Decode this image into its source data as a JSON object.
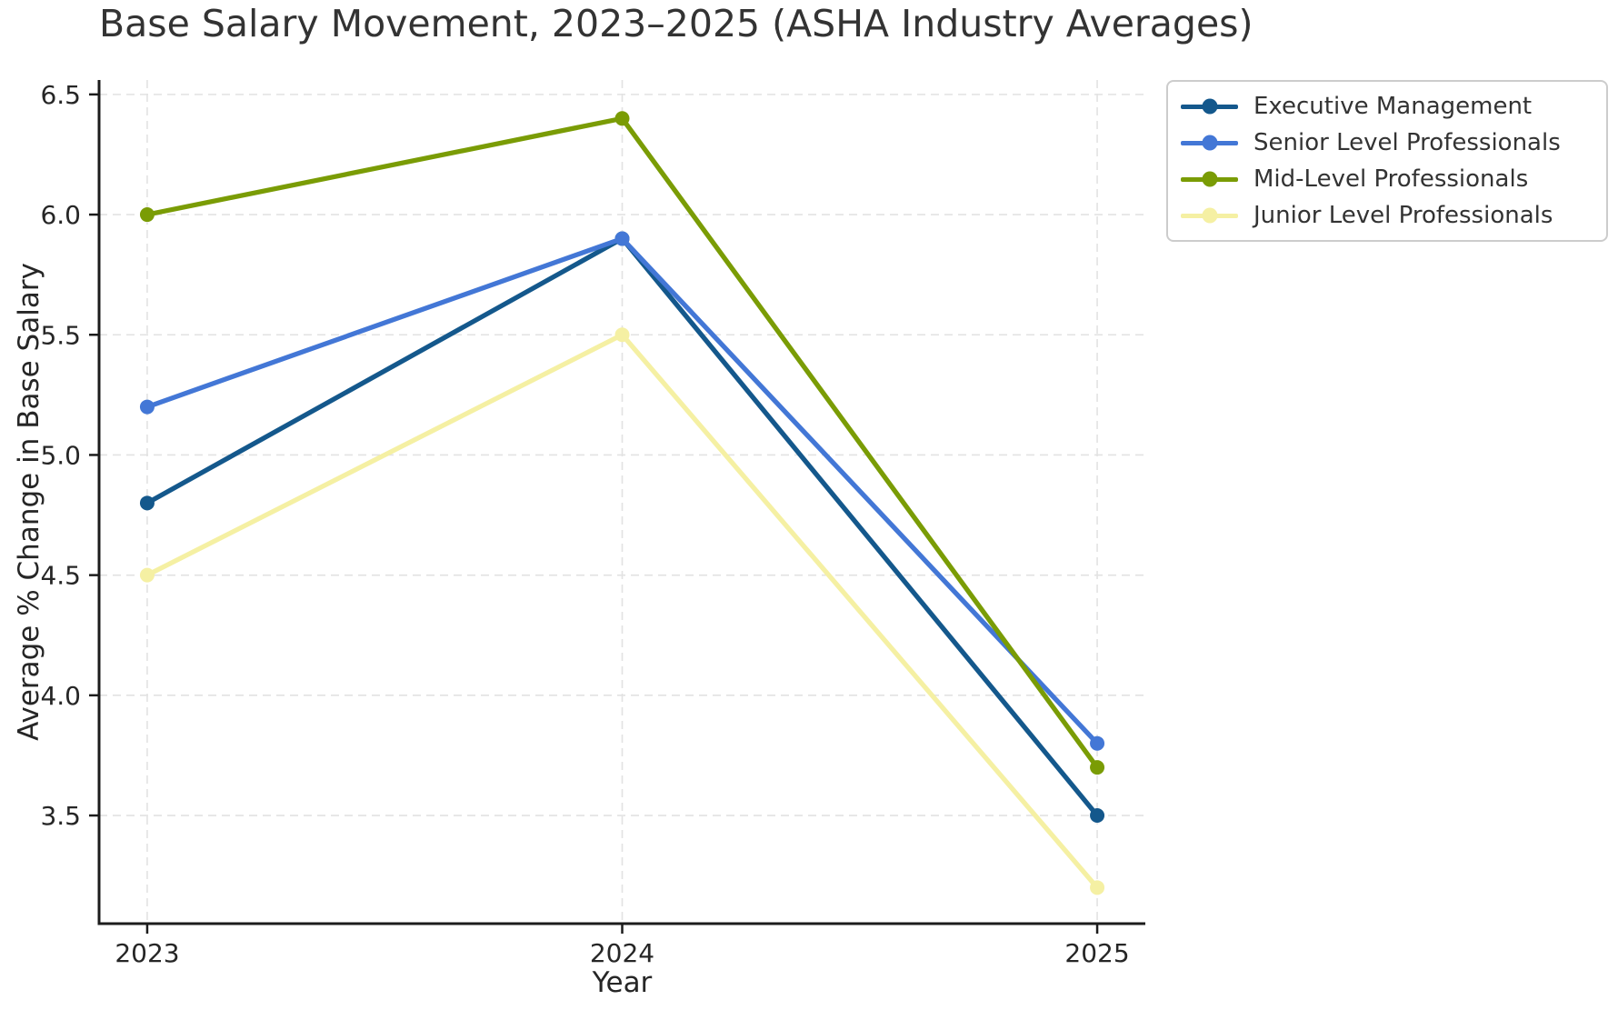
{
  "chart_data": {
    "type": "line",
    "title": "Base Salary Movement, 2023–2025 (ASHA Industry Averages)",
    "xlabel": "Year",
    "ylabel": "Average % Change in Base Salary",
    "categories": [
      "2023",
      "2024",
      "2025"
    ],
    "series": [
      {
        "name": "Executive Management",
        "color": "#14588c",
        "values": [
          4.8,
          5.9,
          3.5
        ]
      },
      {
        "name": "Senior Level Professionals",
        "color": "#4377d6",
        "values": [
          5.2,
          5.9,
          3.8
        ]
      },
      {
        "name": "Mid-Level Professionals",
        "color": "#7a9c05",
        "values": [
          6.0,
          6.4,
          3.7
        ]
      },
      {
        "name": "Junior Level Professionals",
        "color": "#f5f0a3",
        "values": [
          4.5,
          5.5,
          3.2
        ]
      }
    ],
    "ytick_labels": [
      "3.5",
      "4.0",
      "4.5",
      "5.0",
      "5.5",
      "6.0",
      "6.5"
    ],
    "ylim": [
      3.05,
      6.56
    ],
    "grid": {
      "on": true,
      "style": "dashed",
      "color": "#e2e2e2"
    },
    "legend_position": "upper right",
    "axis_color": "#1c1c1c",
    "tick_text_color": "#262626"
  }
}
